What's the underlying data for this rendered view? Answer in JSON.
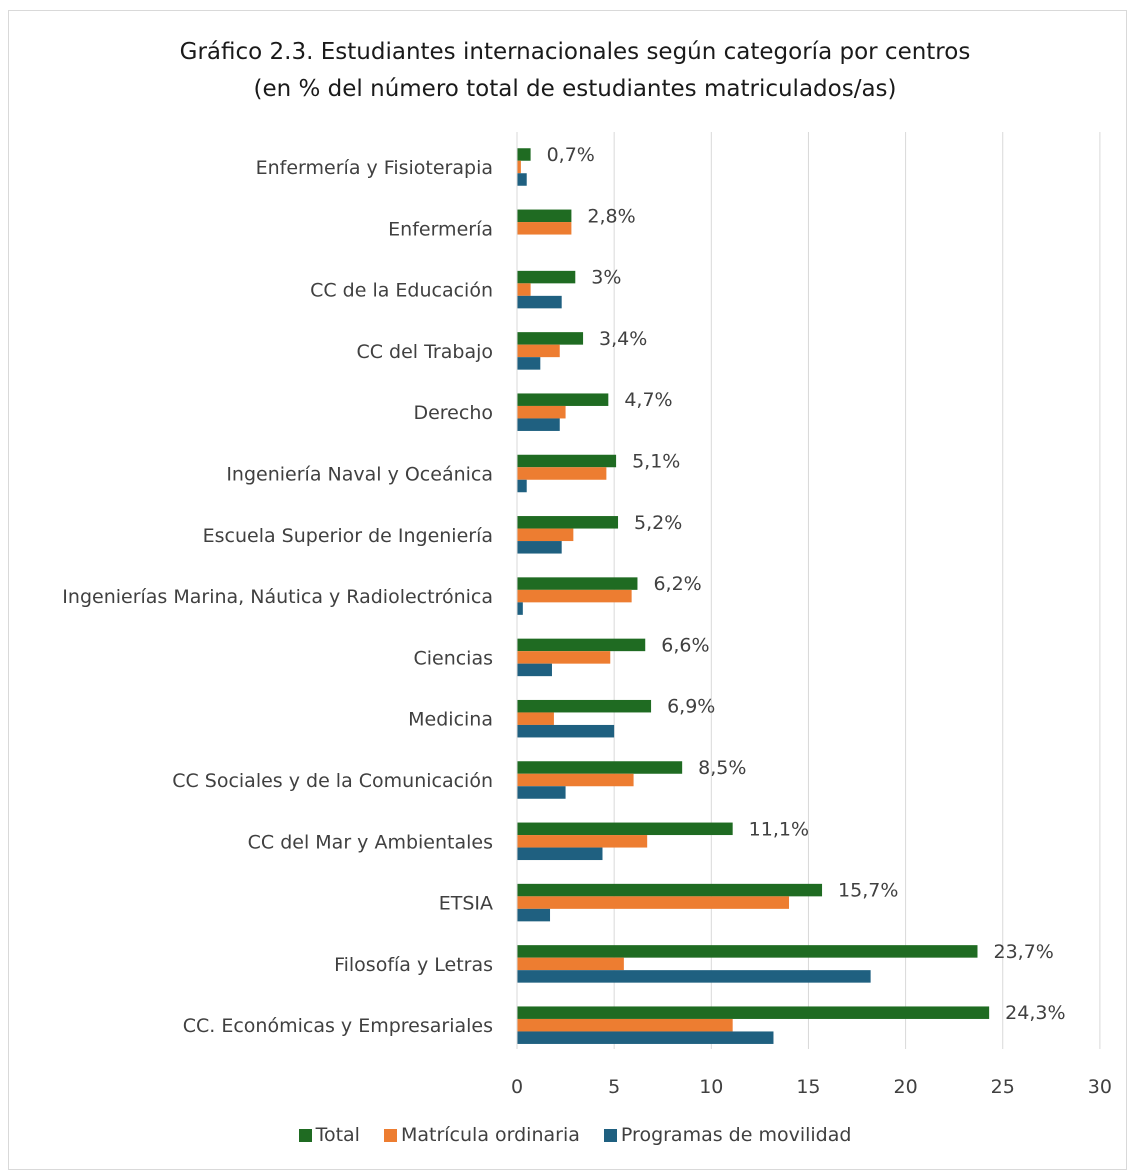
{
  "chart_data": {
    "type": "bar",
    "orientation": "horizontal",
    "title": "Gráfico 2.3. Estudiantes internacionales según categoría por centros",
    "subtitle": "(en % del número total de estudiantes matriculados/as)",
    "xlabel": "",
    "ylabel": "",
    "xlim": [
      0,
      30
    ],
    "xticks": [
      0,
      5,
      10,
      15,
      20,
      25,
      30
    ],
    "grid": "vertical",
    "legend_position": "bottom",
    "categories": [
      "Enfermería y Fisioterapia",
      "Enfermería",
      "CC de la Educación",
      "CC del Trabajo",
      "Derecho",
      "Ingeniería Naval y Oceánica",
      "Escuela Superior de Ingeniería",
      "Ingenierías Marina, Náutica y Radiolectrónica",
      "Ciencias",
      "Medicina",
      "CC Sociales y de la Comunicación",
      "CC del Mar y Ambientales",
      "ETSIA",
      "Filosofía y Letras",
      "CC. Económicas y Empresariales"
    ],
    "series": [
      {
        "name": "Total",
        "color": "#1f6b22",
        "values": [
          0.7,
          2.8,
          3.0,
          3.4,
          4.7,
          5.1,
          5.2,
          6.2,
          6.6,
          6.9,
          8.5,
          11.1,
          15.7,
          23.7,
          24.3
        ],
        "data_labels": [
          "0,7%",
          "2,8%",
          "3%",
          "3,4%",
          "4,7%",
          "5,1%",
          "5,2%",
          "6,2%",
          "6,6%",
          "6,9%",
          "8,5%",
          "11,1%",
          "15,7%",
          "23,7%",
          "24,3%"
        ]
      },
      {
        "name": "Matrícula ordinaria",
        "color": "#ed7d31",
        "values": [
          0.2,
          2.8,
          0.7,
          2.2,
          2.5,
          4.6,
          2.9,
          5.9,
          4.8,
          1.9,
          6.0,
          6.7,
          14.0,
          5.5,
          11.1
        ]
      },
      {
        "name": "Programas de movilidad",
        "color": "#1f6080",
        "values": [
          0.5,
          0.0,
          2.3,
          1.2,
          2.2,
          0.5,
          2.3,
          0.3,
          1.8,
          5.0,
          2.5,
          4.4,
          1.7,
          18.2,
          13.2
        ]
      }
    ]
  }
}
